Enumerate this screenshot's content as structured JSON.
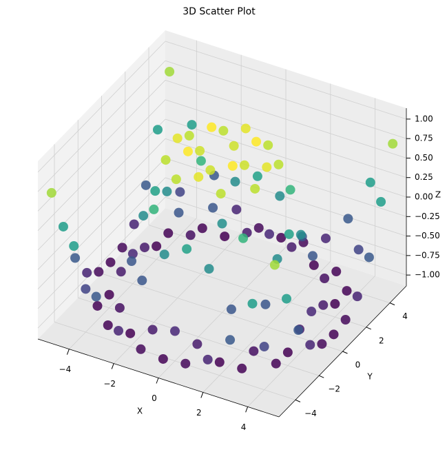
{
  "chart_data": {
    "type": "scatter3d",
    "title": "3D Scatter Plot",
    "x_label": "X",
    "y_label": "Y",
    "z_label": "Z",
    "x": [
      -5,
      -4,
      -3,
      -2,
      -1,
      0,
      1,
      2,
      3,
      4,
      5
    ],
    "y": [
      -5,
      -4,
      -3,
      -2,
      -1,
      0,
      1,
      2,
      3,
      4,
      5
    ],
    "z": [
      [
        0.709,
        0.12,
        -0.437,
        -0.782,
        -0.926,
        -0.959,
        -0.926,
        -0.782,
        -0.437,
        0.12,
        0.709
      ],
      [
        0.12,
        -0.586,
        -0.959,
        -0.971,
        -0.831,
        -0.757,
        -0.831,
        -0.971,
        -0.959,
        -0.586,
        0.12
      ],
      [
        -0.437,
        -0.959,
        -0.892,
        -0.448,
        -0.021,
        0.141,
        -0.021,
        -0.448,
        -0.892,
        -0.959,
        -0.437
      ],
      [
        -0.782,
        -0.971,
        -0.448,
        0.308,
        0.787,
        0.909,
        0.787,
        0.308,
        -0.448,
        -0.971,
        -0.782
      ],
      [
        -0.926,
        -0.831,
        -0.021,
        0.787,
        0.988,
        0.841,
        0.988,
        0.787,
        -0.021,
        -0.831,
        -0.926
      ],
      [
        -0.959,
        -0.757,
        0.141,
        0.909,
        0.841,
        0,
        0.841,
        0.909,
        0.141,
        -0.757,
        -0.959
      ],
      [
        -0.926,
        -0.831,
        -0.021,
        0.787,
        0.988,
        0.841,
        0.988,
        0.787,
        -0.021,
        -0.831,
        -0.926
      ],
      [
        -0.782,
        -0.971,
        -0.448,
        0.308,
        0.787,
        0.909,
        0.787,
        0.308,
        -0.448,
        -0.971,
        -0.782
      ],
      [
        -0.437,
        -0.959,
        -0.892,
        -0.448,
        -0.021,
        0.141,
        -0.021,
        -0.448,
        -0.892,
        -0.959,
        -0.437
      ],
      [
        0.12,
        -0.586,
        -0.959,
        -0.971,
        -0.831,
        -0.757,
        -0.831,
        -0.971,
        -0.959,
        -0.586,
        0.12
      ],
      [
        0.709,
        0.12,
        -0.437,
        -0.782,
        -0.926,
        -0.959,
        -0.926,
        -0.782,
        -0.437,
        0.12,
        0.709
      ]
    ],
    "colormap": "viridis",
    "xlim": [
      -5.4,
      5.4
    ],
    "ylim": [
      -5.4,
      5.4
    ],
    "zlim": [
      -1.14,
      1.14
    ],
    "xticks": [
      {
        "value": -4,
        "label": "−4"
      },
      {
        "value": -2,
        "label": "−2"
      },
      0,
      2,
      4
    ],
    "yticks": [
      {
        "value": -4,
        "label": "−4"
      },
      {
        "value": -2,
        "label": "−2"
      },
      0,
      2,
      4
    ],
    "zticks": [
      {
        "value": -1,
        "label": "−1.00"
      },
      {
        "value": -0.75,
        "label": "−0.75"
      },
      {
        "value": -0.5,
        "label": "−0.50"
      },
      {
        "value": -0.25,
        "label": "−0.25"
      },
      {
        "value": 0,
        "label": "0.00"
      },
      {
        "value": 0.25,
        "label": "0.25"
      },
      {
        "value": 0.5,
        "label": "0.50"
      },
      {
        "value": 0.75,
        "label": "0.75"
      },
      {
        "value": 1,
        "label": "1.00"
      }
    ],
    "grid": true
  }
}
